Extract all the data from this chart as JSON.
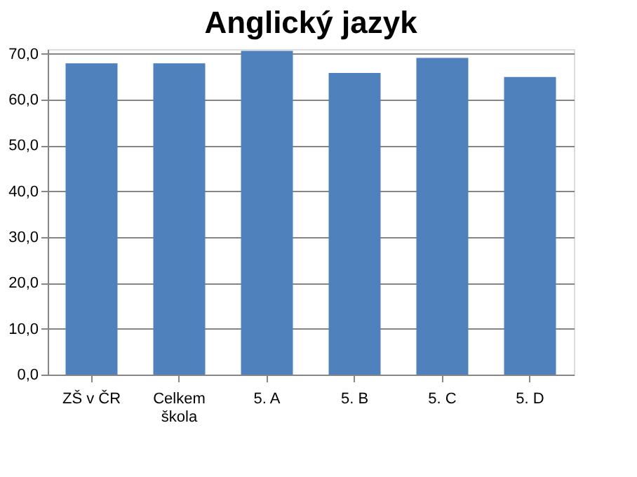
{
  "chart_data": {
    "type": "bar",
    "title": "Anglický jazyk",
    "categories": [
      "ZŠ v ČR",
      "Celkem\nškola",
      "5. A",
      "5. B",
      "5. C",
      "5. D"
    ],
    "values": [
      67.9,
      67.9,
      70.6,
      65.8,
      69.1,
      64.9
    ],
    "color": "#4f81bd",
    "ylim": [
      0,
      71
    ],
    "yticks": [
      {
        "value": 0,
        "label": "0,0"
      },
      {
        "value": 10,
        "label": "10,0"
      },
      {
        "value": 20,
        "label": "20,0"
      },
      {
        "value": 30,
        "label": "30,0"
      },
      {
        "value": 40,
        "label": "40,0"
      },
      {
        "value": 50,
        "label": "50,0"
      },
      {
        "value": 60,
        "label": "60,0"
      },
      {
        "value": 70,
        "label": "70,0"
      }
    ],
    "grid": "y"
  }
}
